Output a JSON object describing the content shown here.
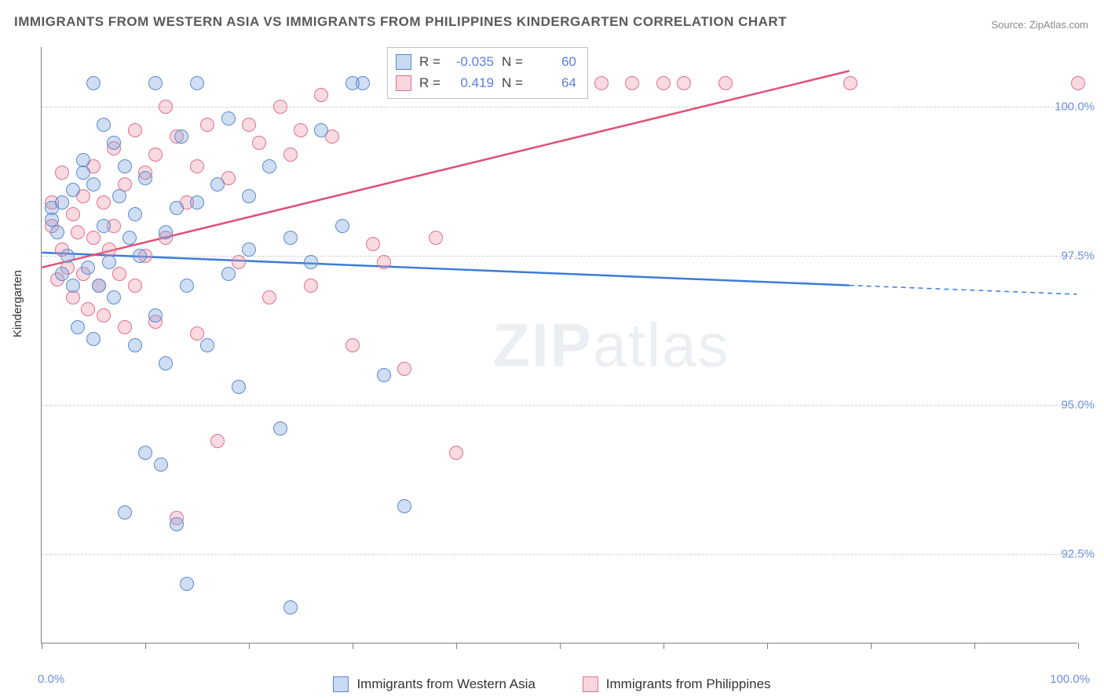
{
  "title": "IMMIGRANTS FROM WESTERN ASIA VS IMMIGRANTS FROM PHILIPPINES KINDERGARTEN CORRELATION CHART",
  "source": "Source: ZipAtlas.com",
  "ylabel": "Kindergarten",
  "watermark_a": "ZIP",
  "watermark_b": "atlas",
  "chart": {
    "type": "scatter",
    "xlim": [
      0,
      100
    ],
    "ylim": [
      91,
      101
    ],
    "x_ticks": [
      0,
      10,
      20,
      30,
      40,
      50,
      60,
      70,
      80,
      90,
      100
    ],
    "y_ticks": [
      92.5,
      95.0,
      97.5,
      100.0
    ],
    "x_tick_labels": {
      "0": "0.0%",
      "100": "100.0%"
    },
    "y_tick_labels": [
      "92.5%",
      "95.0%",
      "97.5%",
      "100.0%"
    ],
    "grid_color": "#d0d0d0",
    "axis_color": "#808080",
    "background_color": "#ffffff",
    "marker_size": 18,
    "series": [
      {
        "name": "Immigrants from Western Asia",
        "color_fill": "rgba(120,160,220,0.35)",
        "color_stroke": "#5a8ad0",
        "r": "-0.035",
        "n": "60",
        "trend": {
          "x1": 0,
          "y1": 97.55,
          "x2": 78,
          "y2": 97.0,
          "dash_x2": 100,
          "dash_y2": 96.85,
          "color": "#3d7bd9",
          "width": 2.5
        },
        "points": [
          [
            1,
            98.3
          ],
          [
            1,
            98.1
          ],
          [
            1.5,
            97.9
          ],
          [
            2,
            98.4
          ],
          [
            2,
            97.2
          ],
          [
            2.5,
            97.5
          ],
          [
            3,
            98.6
          ],
          [
            3,
            97.0
          ],
          [
            3.5,
            96.3
          ],
          [
            4,
            99.1
          ],
          [
            4,
            98.9
          ],
          [
            4.5,
            97.3
          ],
          [
            5,
            100.4
          ],
          [
            5,
            98.7
          ],
          [
            5,
            96.1
          ],
          [
            5.5,
            97.0
          ],
          [
            6,
            99.7
          ],
          [
            6,
            98.0
          ],
          [
            6.5,
            97.4
          ],
          [
            7,
            99.4
          ],
          [
            7,
            96.8
          ],
          [
            7.5,
            98.5
          ],
          [
            8,
            99.0
          ],
          [
            8,
            93.2
          ],
          [
            8.5,
            97.8
          ],
          [
            9,
            98.2
          ],
          [
            9,
            96.0
          ],
          [
            9.5,
            97.5
          ],
          [
            10,
            98.8
          ],
          [
            10,
            94.2
          ],
          [
            11,
            100.4
          ],
          [
            11,
            96.5
          ],
          [
            11.5,
            94.0
          ],
          [
            12,
            97.9
          ],
          [
            12,
            95.7
          ],
          [
            13,
            98.3
          ],
          [
            13,
            93.0
          ],
          [
            13.5,
            99.5
          ],
          [
            14,
            97.0
          ],
          [
            14,
            92.0
          ],
          [
            15,
            100.4
          ],
          [
            15,
            98.4
          ],
          [
            16,
            96.0
          ],
          [
            17,
            98.7
          ],
          [
            18,
            99.8
          ],
          [
            18,
            97.2
          ],
          [
            19,
            95.3
          ],
          [
            20,
            98.5
          ],
          [
            20,
            97.6
          ],
          [
            22,
            99.0
          ],
          [
            23,
            94.6
          ],
          [
            24,
            97.8
          ],
          [
            24,
            91.6
          ],
          [
            26,
            97.4
          ],
          [
            27,
            99.6
          ],
          [
            29,
            98.0
          ],
          [
            30,
            100.4
          ],
          [
            31,
            100.4
          ],
          [
            33,
            95.5
          ],
          [
            35,
            93.3
          ]
        ]
      },
      {
        "name": "Immigrants from Philippines",
        "color_fill": "rgba(240,150,170,0.35)",
        "color_stroke": "#e0708c",
        "r": "0.419",
        "n": "64",
        "trend": {
          "x1": 0,
          "y1": 97.3,
          "x2": 78,
          "y2": 100.6,
          "dash_x2": null,
          "dash_y2": null,
          "color": "#e05078",
          "width": 2.5
        },
        "points": [
          [
            1,
            98.4
          ],
          [
            1,
            98.0
          ],
          [
            1.5,
            97.1
          ],
          [
            2,
            97.6
          ],
          [
            2,
            98.9
          ],
          [
            2.5,
            97.3
          ],
          [
            3,
            98.2
          ],
          [
            3,
            96.8
          ],
          [
            3.5,
            97.9
          ],
          [
            4,
            98.5
          ],
          [
            4,
            97.2
          ],
          [
            4.5,
            96.6
          ],
          [
            5,
            99.0
          ],
          [
            5,
            97.8
          ],
          [
            5.5,
            97.0
          ],
          [
            6,
            98.4
          ],
          [
            6,
            96.5
          ],
          [
            6.5,
            97.6
          ],
          [
            7,
            99.3
          ],
          [
            7,
            98.0
          ],
          [
            7.5,
            97.2
          ],
          [
            8,
            98.7
          ],
          [
            8,
            96.3
          ],
          [
            9,
            99.6
          ],
          [
            9,
            97.0
          ],
          [
            10,
            98.9
          ],
          [
            10,
            97.5
          ],
          [
            11,
            99.2
          ],
          [
            11,
            96.4
          ],
          [
            12,
            100.0
          ],
          [
            12,
            97.8
          ],
          [
            13,
            99.5
          ],
          [
            13,
            93.1
          ],
          [
            14,
            98.4
          ],
          [
            15,
            99.0
          ],
          [
            15,
            96.2
          ],
          [
            16,
            99.7
          ],
          [
            17,
            94.4
          ],
          [
            18,
            98.8
          ],
          [
            19,
            97.4
          ],
          [
            20,
            99.7
          ],
          [
            21,
            99.4
          ],
          [
            22,
            96.8
          ],
          [
            23,
            100.0
          ],
          [
            24,
            99.2
          ],
          [
            25,
            99.6
          ],
          [
            26,
            97.0
          ],
          [
            27,
            100.2
          ],
          [
            28,
            99.5
          ],
          [
            30,
            96.0
          ],
          [
            32,
            97.7
          ],
          [
            33,
            97.4
          ],
          [
            35,
            95.6
          ],
          [
            38,
            97.8
          ],
          [
            40,
            94.2
          ],
          [
            46,
            100.4
          ],
          [
            48,
            100.4
          ],
          [
            54,
            100.4
          ],
          [
            57,
            100.4
          ],
          [
            60,
            100.4
          ],
          [
            62,
            100.4
          ],
          [
            66,
            100.4
          ],
          [
            78,
            100.4
          ],
          [
            100,
            100.4
          ]
        ]
      }
    ]
  },
  "legend_stats": {
    "r_label": "R =",
    "n_label": "N ="
  },
  "bottom_legend": {
    "a": "Immigrants from Western Asia",
    "b": "Immigrants from Philippines"
  }
}
